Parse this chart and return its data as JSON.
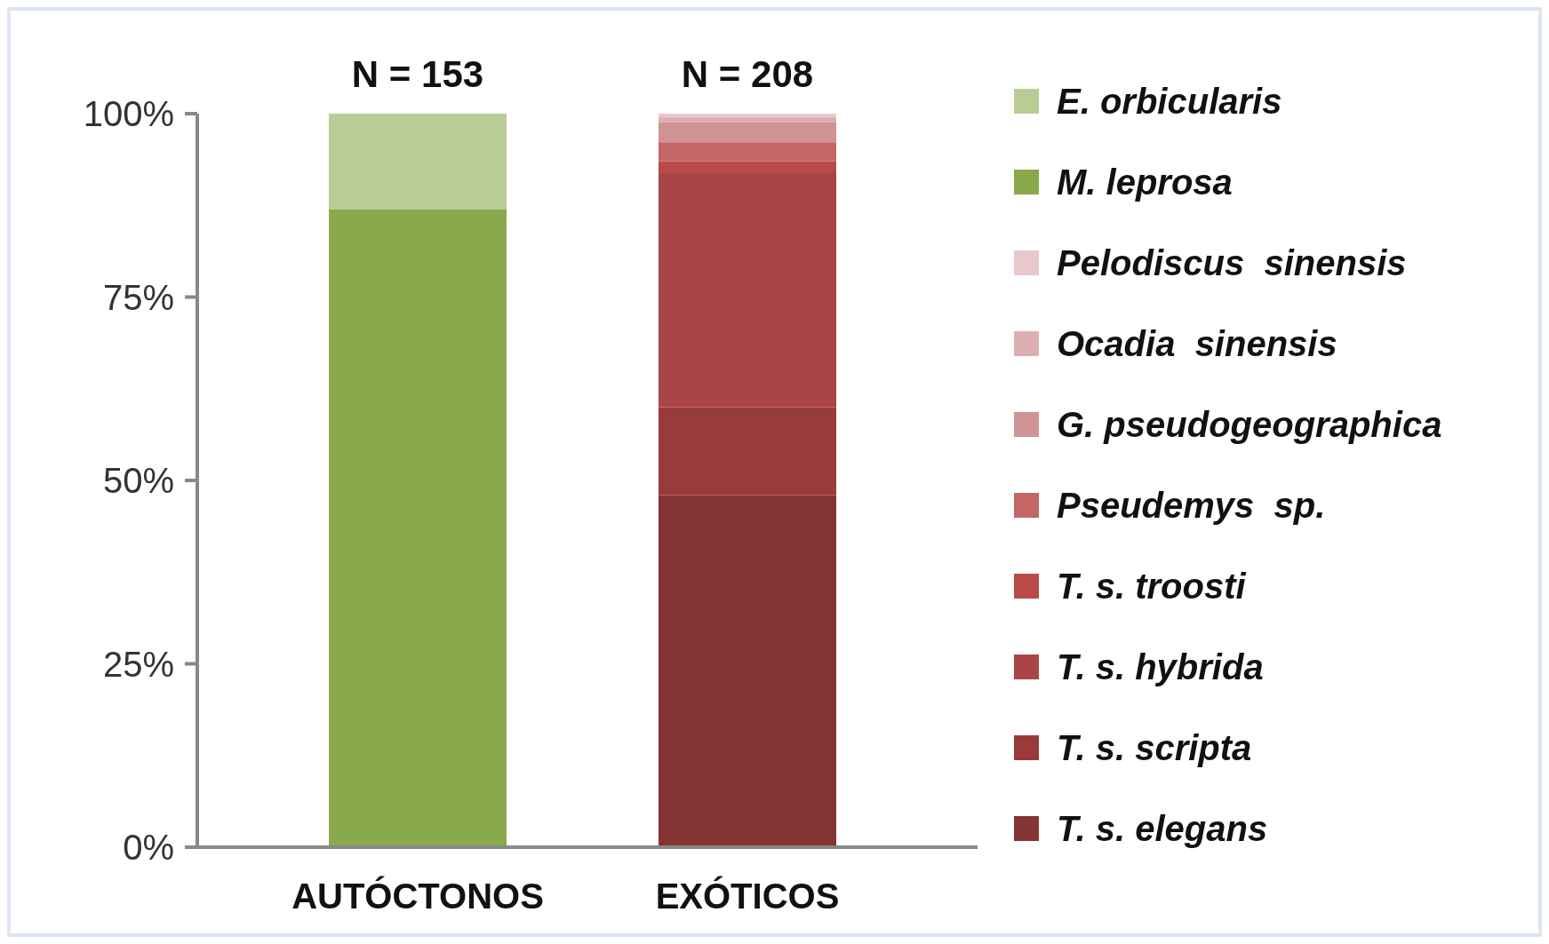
{
  "chart_data": {
    "type": "bar",
    "stacked": true,
    "categories": [
      "AUTÓCTONOS",
      "EXÓTICOS"
    ],
    "series": [
      {
        "name": "T. s. elegans",
        "color": "#843432",
        "values": [
          null,
          48
        ]
      },
      {
        "name": "T. s. scripta",
        "color": "#993b3a",
        "values": [
          null,
          12
        ]
      },
      {
        "name": "T. s. hybrida",
        "color": "#ab4444",
        "values": [
          null,
          32
        ]
      },
      {
        "name": "T. s. troosti",
        "color": "#b84a48",
        "values": [
          null,
          1.5
        ]
      },
      {
        "name": "Pseudemys  sp.",
        "color": "#c46566",
        "values": [
          null,
          2.6
        ]
      },
      {
        "name": "G. pseudogeographica",
        "color": "#d09393",
        "values": [
          null,
          2.7
        ]
      },
      {
        "name": "Ocadia  sinensis",
        "color": "#ddaeb0",
        "values": [
          null,
          0.7
        ]
      },
      {
        "name": "Pelodiscus  sinensis",
        "color": "#e8c8cb",
        "values": [
          null,
          0.5
        ]
      },
      {
        "name": "M. leprosa",
        "color": "#8aa84c",
        "values": [
          87,
          null
        ]
      },
      {
        "name": "E. orbicularis",
        "color": "#bacc95",
        "values": [
          13,
          null
        ]
      }
    ],
    "ylim": [
      0,
      100
    ],
    "yticks": [
      {
        "value": 0,
        "label": "0%"
      },
      {
        "value": 25,
        "label": "25%"
      },
      {
        "value": 50,
        "label": "50%"
      },
      {
        "value": 75,
        "label": "75%"
      },
      {
        "value": 100,
        "label": "100%"
      }
    ],
    "annotations": [
      {
        "text": "N = 153",
        "x": "AUTÓCTONOS",
        "y": 100
      },
      {
        "text": "N = 208",
        "x": "EXÓTICOS",
        "y": 100
      }
    ],
    "legend": "right",
    "grid": false
  }
}
